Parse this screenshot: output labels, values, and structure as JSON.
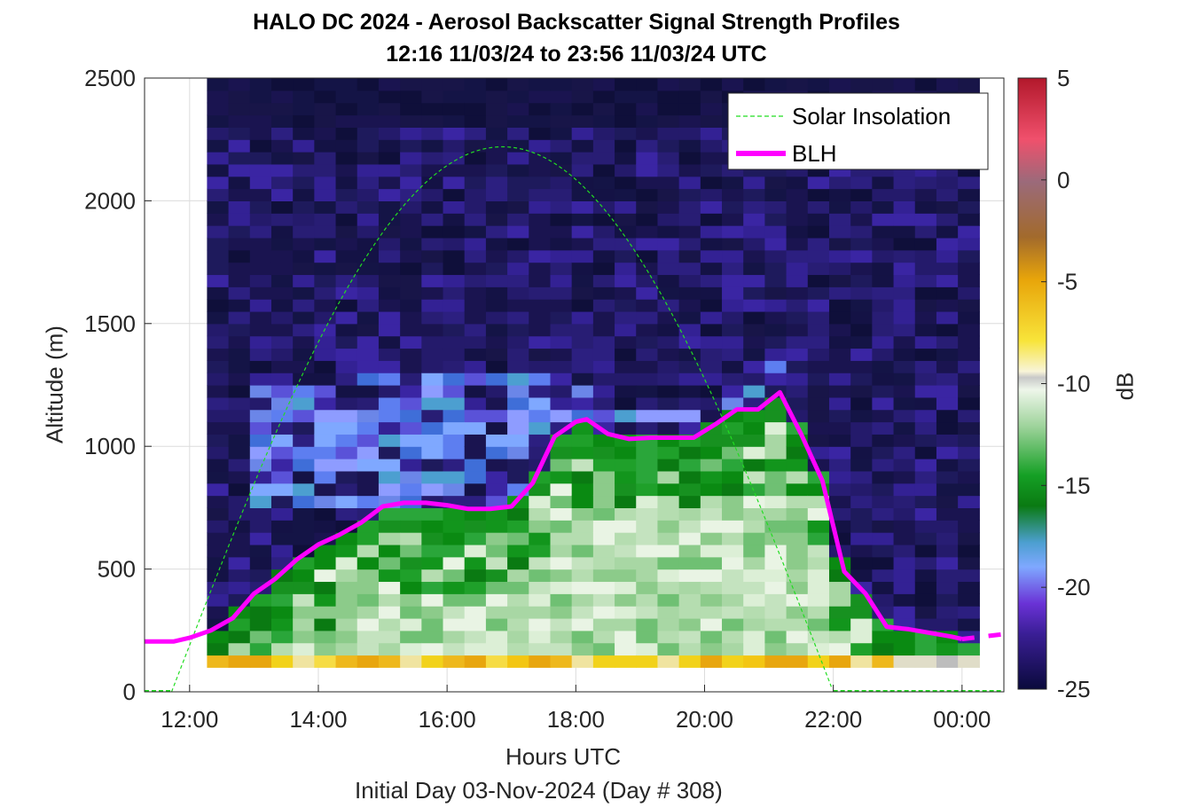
{
  "chart_data": {
    "type": "heatmap",
    "title": "HALO DC 2024 - Aerosol Backscatter Signal Strength Profiles",
    "subtitle": "12:16 11/03/24 to 23:56 11/03/24  UTC",
    "xlabel": "Hours UTC",
    "x_sublabel": "Initial Day 03-Nov-2024 (Day # 308)",
    "ylabel": "Altitude (m)",
    "colorbar_label": "dB",
    "xlim": [
      11.3,
      24.65
    ],
    "ylim": [
      0,
      2500
    ],
    "x_ticks": [
      12,
      14,
      16,
      18,
      20,
      22,
      24
    ],
    "x_tick_labels": [
      "12:00",
      "14:00",
      "16:00",
      "18:00",
      "20:00",
      "22:00",
      "00:00"
    ],
    "y_ticks": [
      0,
      500,
      1000,
      1500,
      2000,
      2500
    ],
    "y_tick_labels": [
      "0",
      "500",
      "1000",
      "1500",
      "2000",
      "2500"
    ],
    "colorbar_range": [
      -25,
      5
    ],
    "colorbar_ticks": [
      5,
      0,
      -5,
      -10,
      -15,
      -20,
      -25
    ],
    "colorbar_tick_labels": [
      "5",
      "0",
      "-5",
      "-10",
      "-15",
      "-20",
      "-25"
    ],
    "grid": true,
    "legend_location": "top-right",
    "legend": [
      "Solar Insolation",
      "BLH"
    ],
    "heatmap": {
      "x_start": 12.27,
      "x_end": 23.96,
      "column_width_hours": 0.3333,
      "row_height_m": 50,
      "lowest_row_base_m": 100,
      "regions_db": [
        {
          "layer": "near-surface",
          "top_m": 150,
          "value_db": -6
        },
        {
          "layer": "boundary-layer core",
          "top_m": "BLH",
          "value_db": -14
        },
        {
          "layer": "residual aerosol layer",
          "from_m": 750,
          "to_m": 1300,
          "time_from": 13.0,
          "time_to": 17.5,
          "value_db": -19
        },
        {
          "layer": "free troposphere",
          "top_m": 2500,
          "value_db": -23
        }
      ]
    },
    "series": [
      {
        "name": "BLH",
        "color": "#ff00ff",
        "style": "solid",
        "x": [
          11.3,
          11.75,
          12.0,
          12.33,
          12.67,
          13.0,
          13.33,
          13.67,
          14.0,
          14.33,
          14.67,
          15.0,
          15.33,
          15.67,
          16.0,
          16.33,
          16.67,
          17.0,
          17.33,
          17.67,
          18.0,
          18.17,
          18.5,
          18.83,
          19.17,
          19.5,
          19.83,
          20.17,
          20.5,
          20.83,
          21.17,
          21.5,
          21.83,
          22.17,
          22.5,
          22.83,
          23.17,
          23.5,
          23.83,
          24.0
        ],
        "y": [
          205,
          205,
          220,
          250,
          300,
          400,
          460,
          540,
          600,
          640,
          690,
          755,
          770,
          770,
          760,
          745,
          745,
          755,
          850,
          1040,
          1100,
          1110,
          1050,
          1030,
          1035,
          1035,
          1035,
          1090,
          1150,
          1150,
          1220,
          1050,
          860,
          490,
          400,
          265,
          255,
          240,
          225,
          215
        ]
      },
      {
        "name": "BLH-extension",
        "color": "#ff00ff",
        "style": "dashed",
        "x": [
          24.0,
          24.65
        ],
        "y": [
          215,
          235
        ]
      },
      {
        "name": "Solar Insolation",
        "color": "#22dd22",
        "style": "dashed",
        "peak_m": 2220,
        "peak_time": 16.87,
        "sunrise": 11.72,
        "sunset": 22.0
      }
    ]
  },
  "colors": {
    "blh": "#ff00ff",
    "solar": "#22dd22",
    "axis": "#262626",
    "grid": "#dcdcdc"
  }
}
